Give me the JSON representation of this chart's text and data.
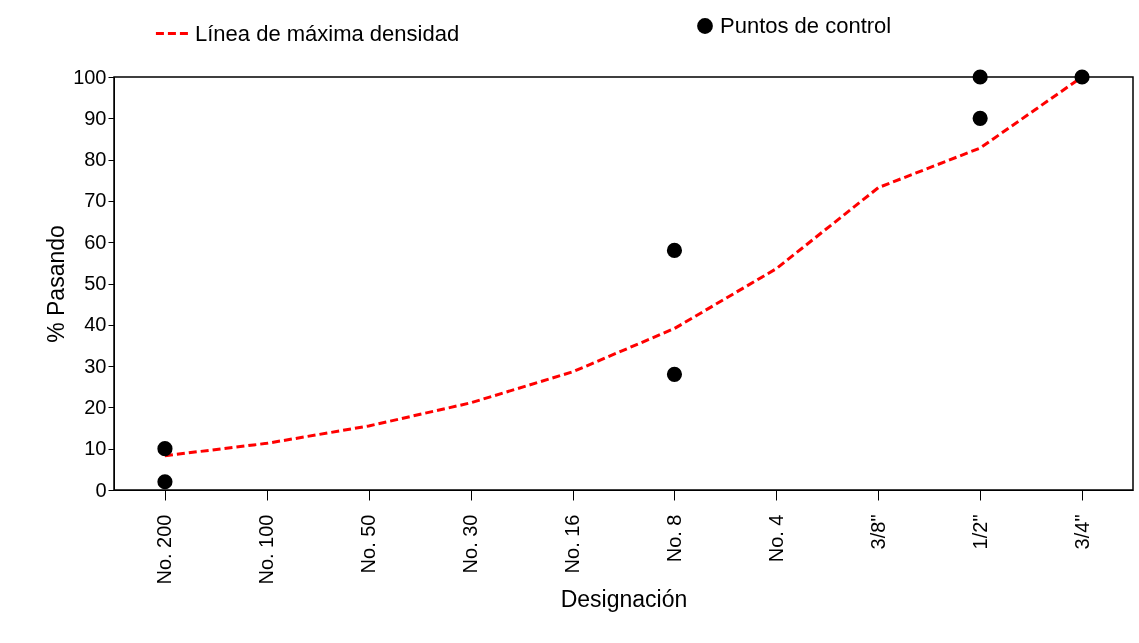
{
  "chart_data": {
    "type": "scatter",
    "xlabel": "Designación",
    "ylabel": "% Pasando",
    "ylim": [
      0,
      100
    ],
    "categories": [
      "No. 200",
      "No. 100",
      "No. 50",
      "No. 30",
      "No. 16",
      "No. 8",
      "No. 4",
      "3/8\"",
      "1/2\"",
      "3/4\""
    ],
    "yticks": [
      0,
      10,
      20,
      30,
      40,
      50,
      60,
      70,
      80,
      90,
      100
    ],
    "grid": false,
    "legend": "top",
    "series": [
      {
        "name": "Línea de máxima densidad",
        "type": "line",
        "line_style": "dashed",
        "marker": "none",
        "color": "#ff0000",
        "values": [
          8.3,
          11.3,
          15.5,
          21.1,
          28.6,
          39.1,
          53.6,
          73.2,
          82.8,
          100
        ]
      },
      {
        "name": "Puntos de control",
        "marker": "circle",
        "color": "#000000",
        "x": [
          "No. 200",
          "No. 200",
          "No. 8",
          "No. 8",
          "1/2\"",
          "1/2\"",
          "3/4\""
        ],
        "values": [
          10,
          2,
          58,
          28,
          100,
          90,
          100
        ]
      }
    ]
  }
}
